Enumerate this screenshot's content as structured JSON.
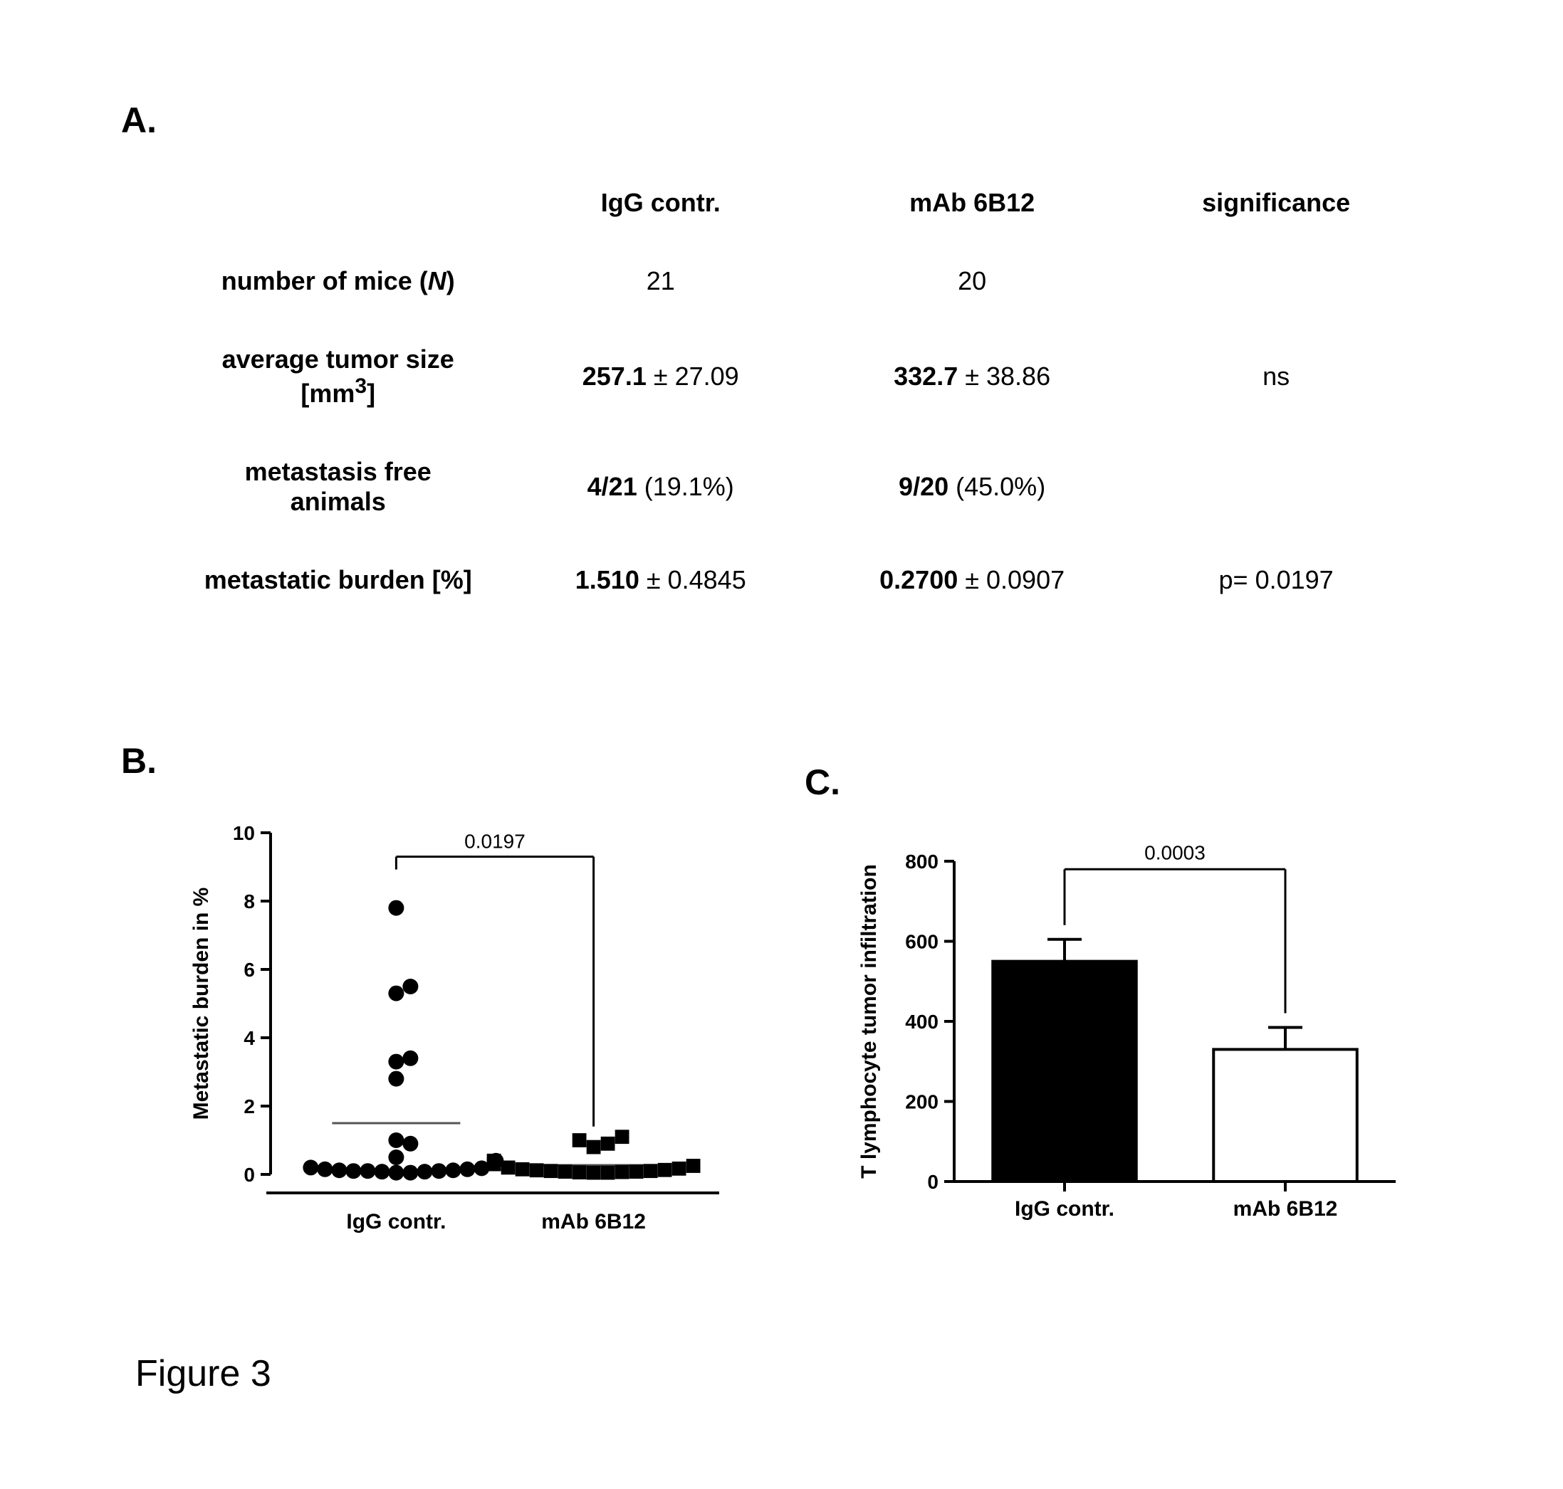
{
  "labels": {
    "A": "A.",
    "B": "B.",
    "C": "C.",
    "figure": "Figure 3"
  },
  "table": {
    "headers": {
      "blank": "",
      "col1": "IgG contr.",
      "col2": "mAb 6B12",
      "col3": "significance"
    },
    "rows": {
      "n_mice": {
        "label_html": "number of mice (<i>N</i>)",
        "c1_html": "21",
        "c2_html": "20",
        "c3_html": ""
      },
      "tumor_size": {
        "label_html": "average tumor size<br>[mm<sup>3</sup>]",
        "c1_html": "<b>257.1</b> ± 27.09",
        "c2_html": "<b>332.7</b> ± 38.86",
        "c3_html": "ns"
      },
      "met_free": {
        "label_html": "metastasis free<br>animals",
        "c1_html": "<b>4/21</b> (19.1%)",
        "c2_html": "<b>9/20</b> (45.0%)",
        "c3_html": ""
      },
      "met_burden": {
        "label_html": "metastatic burden [%]",
        "c1_html": "<b>1.510</b> ± 0.4845",
        "c2_html": "<b>0.2700</b> ± 0.0907",
        "c3_html": "p= 0.0197"
      }
    }
  },
  "panel_b": {
    "type": "scatter",
    "ylabel": "Metastatic burden in %",
    "xlabels": [
      "IgG contr.",
      "mAb 6B12"
    ],
    "ylim": [
      0,
      10
    ],
    "yticks": [
      0,
      2,
      4,
      6,
      8,
      10
    ],
    "pvalue": "0.0197",
    "mean_lines": [
      1.5,
      0.27
    ],
    "groups": [
      {
        "marker": "circle",
        "color": "#000000",
        "x": 1,
        "values": [
          0.05,
          0.05,
          0.08,
          0.08,
          0.1,
          0.1,
          0.1,
          0.12,
          0.12,
          0.15,
          0.15,
          0.18,
          0.2,
          0.4,
          0.5,
          0.9,
          1.0,
          2.8,
          3.3,
          3.4,
          5.3,
          5.5,
          7.8
        ]
      },
      {
        "marker": "square",
        "color": "#000000",
        "x": 2,
        "values": [
          0.05,
          0.05,
          0.06,
          0.07,
          0.08,
          0.08,
          0.1,
          0.1,
          0.12,
          0.13,
          0.15,
          0.17,
          0.2,
          0.25,
          0.3,
          0.4,
          0.8,
          0.9,
          1.0,
          1.1
        ]
      }
    ],
    "axis_color": "#000000",
    "tick_fontsize": 28,
    "label_fontsize": 30,
    "marker_size": 11,
    "line_width": 4
  },
  "panel_c": {
    "type": "bar",
    "ylabel": "T lymphocyte tumor infiltration",
    "xlabels": [
      "IgG contr.",
      "mAb 6B12"
    ],
    "ylim": [
      0,
      800
    ],
    "yticks": [
      0,
      200,
      400,
      600,
      800
    ],
    "pvalue": "0.0003",
    "bars": [
      {
        "value": 550,
        "err": 55,
        "fill": "#000000",
        "stroke": "#000000"
      },
      {
        "value": 330,
        "err": 55,
        "fill": "#ffffff",
        "stroke": "#000000"
      }
    ],
    "bar_width": 0.65,
    "axis_color": "#000000",
    "tick_fontsize": 28,
    "label_fontsize": 30,
    "line_width": 4
  }
}
